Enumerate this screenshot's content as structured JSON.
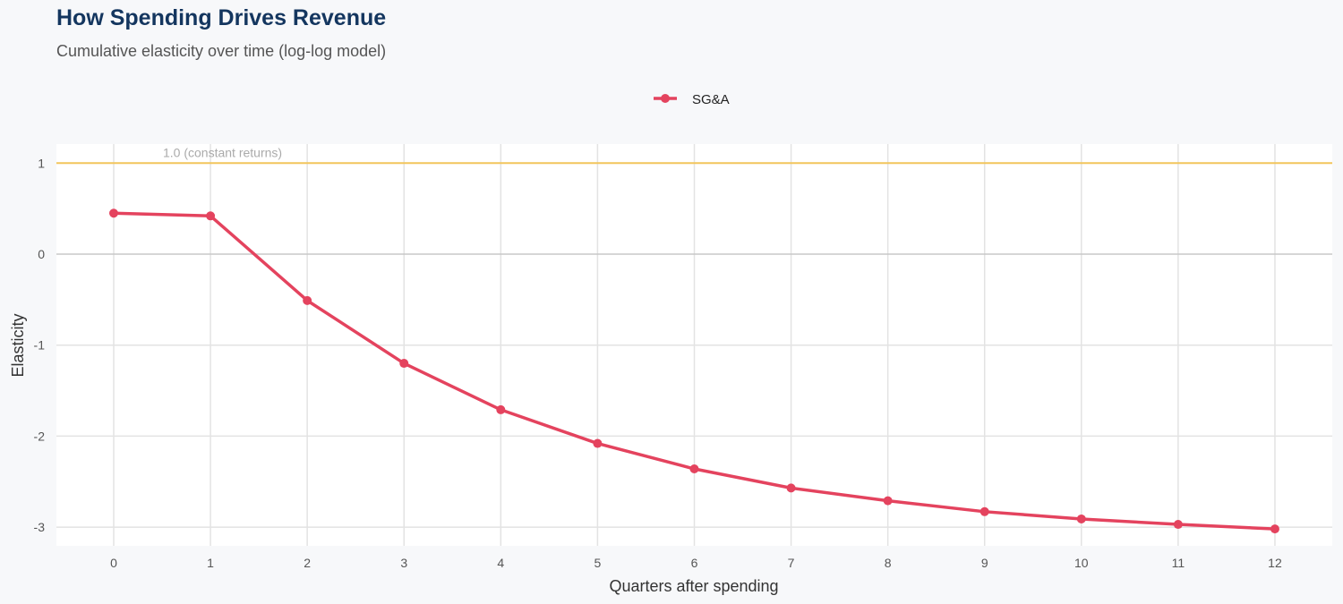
{
  "title": "How Spending Drives Revenue",
  "subtitle": "Cumulative elasticity over time (log-log model)",
  "chart_data": {
    "type": "line",
    "title": "How Spending Drives Revenue",
    "subtitle": "Cumulative elasticity over time (log-log model)",
    "xlabel": "Quarters after spending",
    "ylabel": "Elasticity",
    "x": [
      0,
      1,
      2,
      3,
      4,
      5,
      6,
      7,
      8,
      9,
      10,
      11,
      12
    ],
    "series": [
      {
        "name": "SG&A",
        "color": "#e4435e",
        "values": [
          0.45,
          0.42,
          -0.51,
          -1.2,
          -1.71,
          -2.08,
          -2.36,
          -2.57,
          -2.71,
          -2.83,
          -2.91,
          -2.97,
          -3.02
        ]
      }
    ],
    "xlim": [
      -0.6,
      12.6
    ],
    "ylim": [
      -3.2,
      1.2
    ],
    "xticks": [
      "0",
      "1",
      "2",
      "3",
      "4",
      "5",
      "6",
      "7",
      "8",
      "9",
      "10",
      "11",
      "12"
    ],
    "yticks": [
      "1",
      "0",
      "-1",
      "-2",
      "-3"
    ],
    "reference_line": {
      "y": 1.0,
      "label": "1.0 (constant returns)",
      "color": "#f2c55c"
    },
    "grid": true,
    "legend_position": "top"
  }
}
